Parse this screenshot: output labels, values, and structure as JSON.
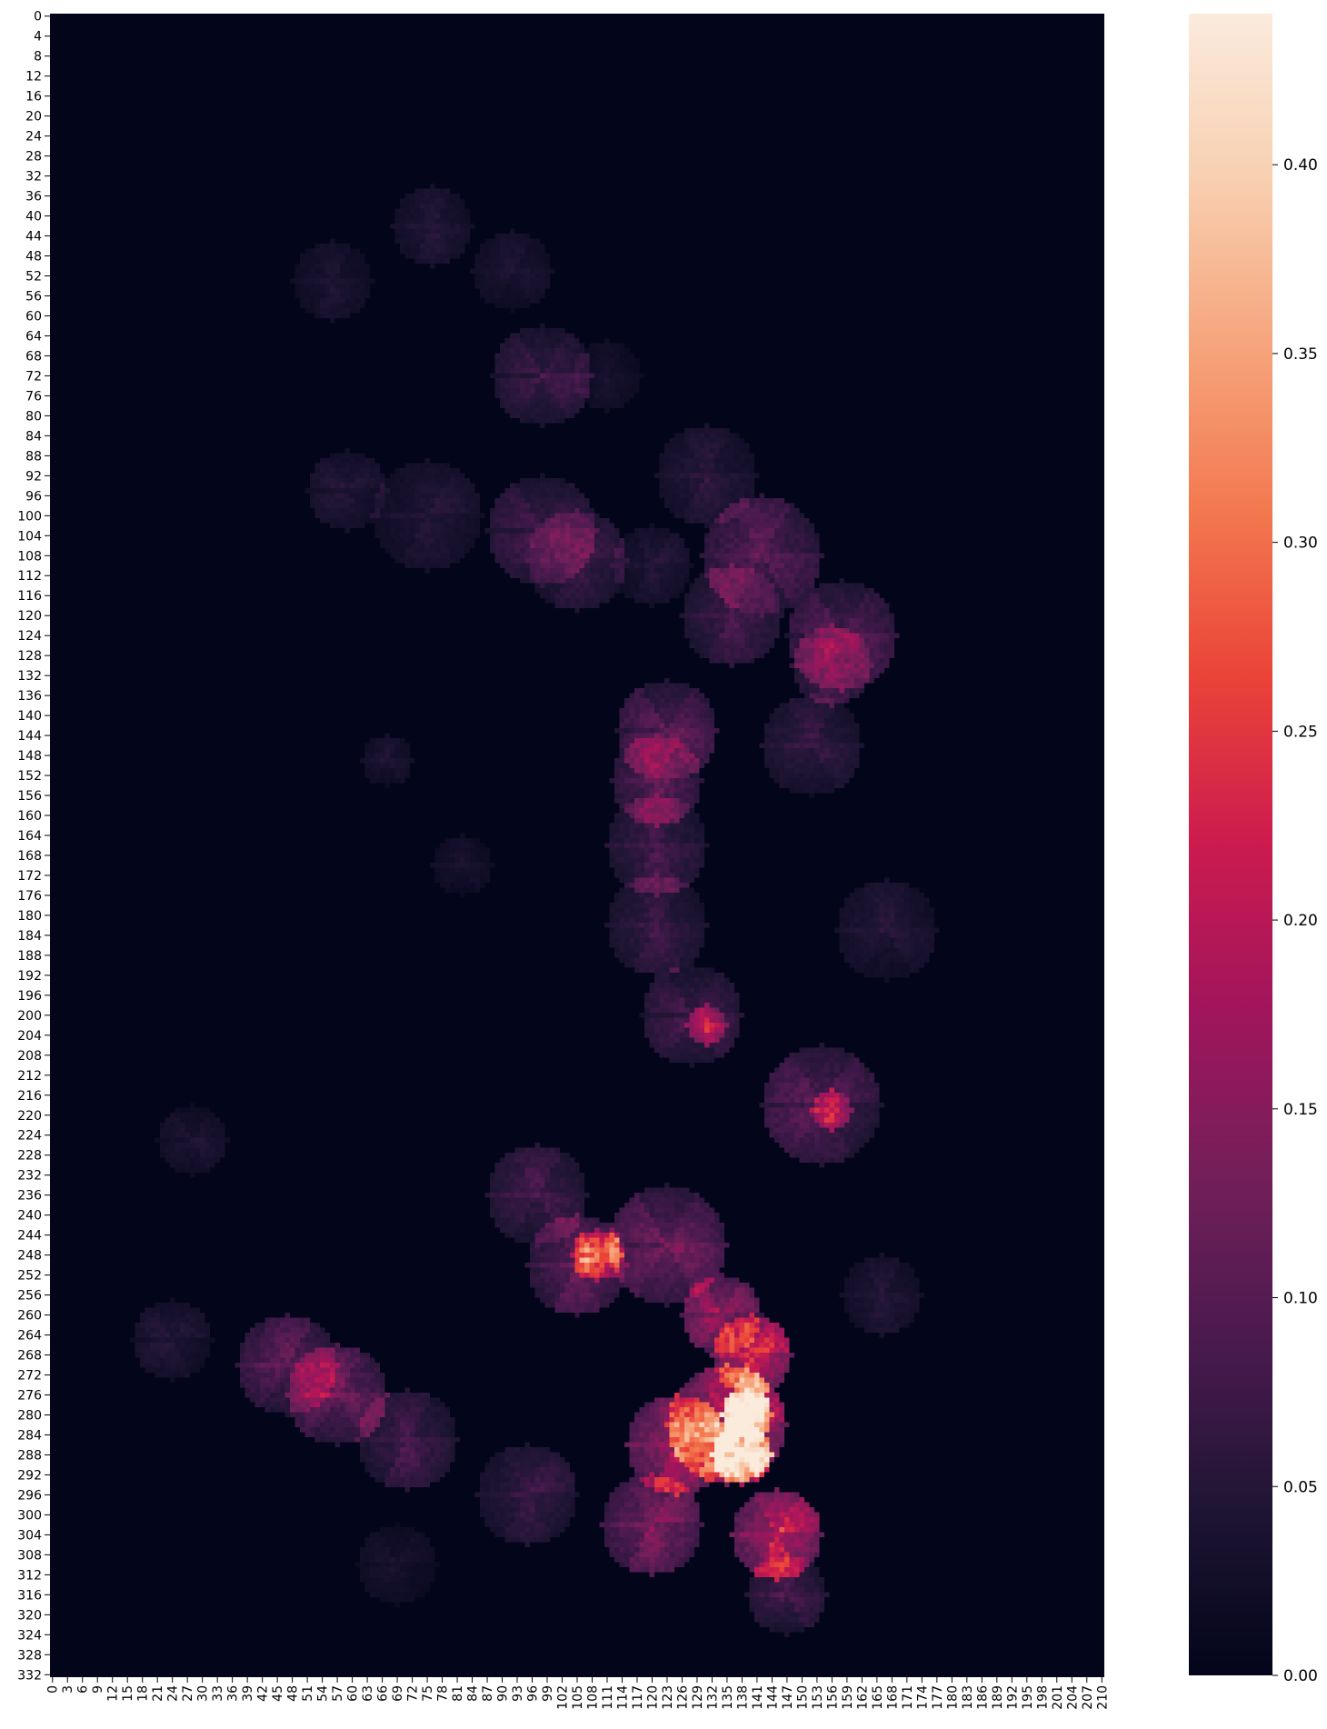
{
  "chart_data": {
    "type": "heatmap",
    "title": "",
    "xlabel": "",
    "ylabel": "",
    "n_cols": 211,
    "n_rows": 333,
    "x_tick_labels": [
      "0",
      "3",
      "6",
      "9",
      "12",
      "15",
      "18",
      "21",
      "24",
      "27",
      "30",
      "33",
      "36",
      "39",
      "42",
      "45",
      "48",
      "51",
      "54",
      "57",
      "60",
      "63",
      "66",
      "69",
      "72",
      "75",
      "78",
      "81",
      "84",
      "87",
      "90",
      "93",
      "96",
      "99",
      "102",
      "105",
      "108",
      "111",
      "114",
      "117",
      "120",
      "123",
      "126",
      "129",
      "132",
      "135",
      "138",
      "141",
      "144",
      "147",
      "150",
      "153",
      "156",
      "159",
      "162",
      "165",
      "168",
      "171",
      "174",
      "177",
      "180",
      "183",
      "186",
      "189",
      "192",
      "195",
      "198",
      "201",
      "204",
      "207",
      "210"
    ],
    "y_tick_labels": [
      "0",
      "4",
      "8",
      "12",
      "16",
      "20",
      "24",
      "28",
      "32",
      "36",
      "40",
      "44",
      "48",
      "52",
      "56",
      "60",
      "64",
      "68",
      "72",
      "76",
      "80",
      "84",
      "88",
      "92",
      "96",
      "100",
      "104",
      "108",
      "112",
      "116",
      "120",
      "124",
      "128",
      "132",
      "136",
      "140",
      "144",
      "148",
      "152",
      "156",
      "160",
      "164",
      "168",
      "172",
      "176",
      "180",
      "184",
      "188",
      "192",
      "196",
      "200",
      "204",
      "208",
      "212",
      "216",
      "220",
      "224",
      "228",
      "232",
      "236",
      "240",
      "244",
      "248",
      "252",
      "256",
      "260",
      "264",
      "268",
      "272",
      "276",
      "280",
      "284",
      "288",
      "292",
      "296",
      "300",
      "304",
      "308",
      "312",
      "316",
      "320",
      "324",
      "328",
      "332"
    ],
    "colorbar": {
      "min": 0.0,
      "max": 0.44,
      "ticks": [
        0.0,
        0.05,
        0.1,
        0.15,
        0.2,
        0.25,
        0.3,
        0.35,
        0.4
      ],
      "tick_labels": [
        "0.00",
        "0.05",
        "0.10",
        "0.15",
        "0.20",
        "0.25",
        "0.30",
        "0.35",
        "0.40"
      ],
      "colormap": "rocket"
    },
    "colormap_stops": [
      "#03051a",
      "#1e1533",
      "#4a1a4f",
      "#731f59",
      "#a1155c",
      "#cb1b4f",
      "#ea4338",
      "#f3784f",
      "#f6a47c",
      "#f8cfb0",
      "#faebdd"
    ],
    "hotspots": [
      {
        "cx": 76,
        "cy": 42,
        "r": 8,
        "v": 0.06
      },
      {
        "cx": 92,
        "cy": 51,
        "r": 8,
        "v": 0.05
      },
      {
        "cx": 56,
        "cy": 53,
        "r": 8,
        "v": 0.05
      },
      {
        "cx": 98,
        "cy": 72,
        "r": 10,
        "v": 0.09
      },
      {
        "cx": 111,
        "cy": 72,
        "r": 7,
        "v": 0.04
      },
      {
        "cx": 59,
        "cy": 95,
        "r": 8,
        "v": 0.06
      },
      {
        "cx": 75,
        "cy": 100,
        "r": 11,
        "v": 0.06
      },
      {
        "cx": 98,
        "cy": 103,
        "r": 11,
        "v": 0.1
      },
      {
        "cx": 105,
        "cy": 109,
        "r": 10,
        "v": 0.09
      },
      {
        "cx": 120,
        "cy": 110,
        "r": 8,
        "v": 0.06
      },
      {
        "cx": 131,
        "cy": 92,
        "r": 10,
        "v": 0.07
      },
      {
        "cx": 142,
        "cy": 108,
        "r": 12,
        "v": 0.12
      },
      {
        "cx": 136,
        "cy": 120,
        "r": 10,
        "v": 0.1
      },
      {
        "cx": 158,
        "cy": 124,
        "r": 11,
        "v": 0.12
      },
      {
        "cx": 156,
        "cy": 130,
        "r": 8,
        "v": 0.12
      },
      {
        "cx": 123,
        "cy": 143,
        "r": 10,
        "v": 0.13
      },
      {
        "cx": 121,
        "cy": 153,
        "r": 9,
        "v": 0.13
      },
      {
        "cx": 152,
        "cy": 146,
        "r": 10,
        "v": 0.08
      },
      {
        "cx": 67,
        "cy": 149,
        "r": 5,
        "v": 0.05
      },
      {
        "cx": 82,
        "cy": 170,
        "r": 6,
        "v": 0.04
      },
      {
        "cx": 121,
        "cy": 166,
        "r": 10,
        "v": 0.1
      },
      {
        "cx": 121,
        "cy": 182,
        "r": 10,
        "v": 0.09
      },
      {
        "cx": 167,
        "cy": 183,
        "r": 10,
        "v": 0.06
      },
      {
        "cx": 128,
        "cy": 200,
        "r": 10,
        "v": 0.1
      },
      {
        "cx": 131,
        "cy": 202,
        "r": 4,
        "v": 0.17
      },
      {
        "cx": 154,
        "cy": 218,
        "r": 12,
        "v": 0.12
      },
      {
        "cx": 156,
        "cy": 219,
        "r": 4,
        "v": 0.19
      },
      {
        "cx": 28,
        "cy": 225,
        "r": 7,
        "v": 0.05
      },
      {
        "cx": 97,
        "cy": 236,
        "r": 10,
        "v": 0.1
      },
      {
        "cx": 105,
        "cy": 250,
        "r": 10,
        "v": 0.15
      },
      {
        "cx": 109,
        "cy": 248,
        "r": 5,
        "v": 0.26
      },
      {
        "cx": 123,
        "cy": 246,
        "r": 12,
        "v": 0.15
      },
      {
        "cx": 134,
        "cy": 260,
        "r": 8,
        "v": 0.2
      },
      {
        "cx": 140,
        "cy": 268,
        "r": 8,
        "v": 0.3
      },
      {
        "cx": 135,
        "cy": 282,
        "r": 12,
        "v": 0.3
      },
      {
        "cx": 139,
        "cy": 280,
        "r": 5,
        "v": 0.42
      },
      {
        "cx": 138,
        "cy": 288,
        "r": 6,
        "v": 0.42
      },
      {
        "cx": 125,
        "cy": 286,
        "r": 10,
        "v": 0.25
      },
      {
        "cx": 145,
        "cy": 304,
        "r": 9,
        "v": 0.27
      },
      {
        "cx": 120,
        "cy": 302,
        "r": 10,
        "v": 0.18
      },
      {
        "cx": 47,
        "cy": 270,
        "r": 10,
        "v": 0.13
      },
      {
        "cx": 57,
        "cy": 276,
        "r": 10,
        "v": 0.15
      },
      {
        "cx": 71,
        "cy": 285,
        "r": 10,
        "v": 0.1
      },
      {
        "cx": 24,
        "cy": 265,
        "r": 8,
        "v": 0.06
      },
      {
        "cx": 166,
        "cy": 256,
        "r": 8,
        "v": 0.06
      },
      {
        "cx": 95,
        "cy": 296,
        "r": 10,
        "v": 0.09
      },
      {
        "cx": 69,
        "cy": 310,
        "r": 8,
        "v": 0.04
      },
      {
        "cx": 147,
        "cy": 316,
        "r": 8,
        "v": 0.1
      }
    ]
  }
}
